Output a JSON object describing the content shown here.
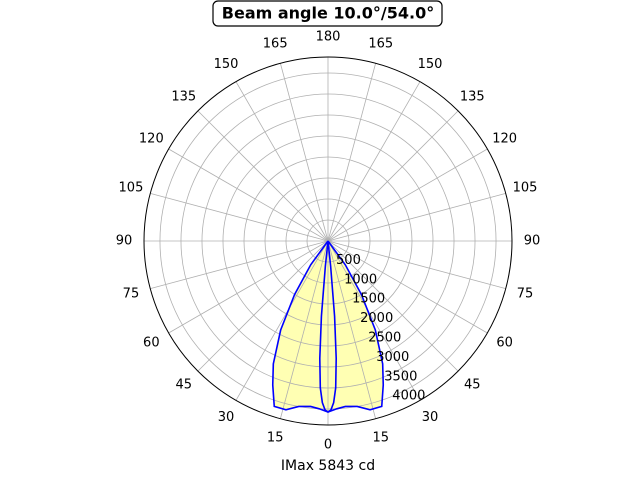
{
  "chart_data": {
    "type": "polar",
    "title": "Beam angle 10.0°/54.0°",
    "xlabel": "IMax 5843 cd",
    "rlim": [
      0,
      4380
    ],
    "rticks": [
      500,
      1000,
      1500,
      2000,
      2500,
      3000,
      3500,
      4000
    ],
    "thetaticks": [
      {
        "value": -165,
        "label": "165"
      },
      {
        "value": -150,
        "label": "150"
      },
      {
        "value": -135,
        "label": "135"
      },
      {
        "value": -120,
        "label": "120"
      },
      {
        "value": -105,
        "label": "105"
      },
      {
        "value": -90,
        "label": "90"
      },
      {
        "value": -75,
        "label": "75"
      },
      {
        "value": -60,
        "label": "60"
      },
      {
        "value": -45,
        "label": "45"
      },
      {
        "value": -30,
        "label": "30"
      },
      {
        "value": -15,
        "label": "15"
      },
      0,
      15,
      30,
      45,
      60,
      75,
      90,
      105,
      120,
      135,
      150,
      165,
      180
    ],
    "grid": true,
    "fill_color": "#ffffb3",
    "series": [
      {
        "color": "#0000ff",
        "fill": true,
        "theta": [
          -40,
          -36,
          -32,
          -28,
          -24,
          -21,
          -18,
          -14,
          -10,
          -6,
          -3,
          0,
          3,
          6,
          10,
          14,
          18,
          21,
          24,
          28,
          32,
          36,
          40
        ],
        "values": [
          0,
          700,
          1500,
          2400,
          3200,
          3670,
          4140,
          4140,
          4000,
          3960,
          4000,
          4070,
          4000,
          3960,
          4000,
          4140,
          4140,
          3670,
          3200,
          2400,
          1500,
          700,
          0
        ]
      },
      {
        "color": "#0000ff",
        "fill": false,
        "theta": [
          -7,
          -6,
          -5,
          -4,
          -3,
          -2,
          -1,
          0,
          1,
          2,
          3,
          4,
          5,
          6,
          7
        ],
        "values": [
          0,
          600,
          1800,
          2800,
          3500,
          3850,
          4020,
          4070,
          4020,
          3850,
          3500,
          2800,
          1800,
          600,
          0
        ]
      }
    ]
  }
}
